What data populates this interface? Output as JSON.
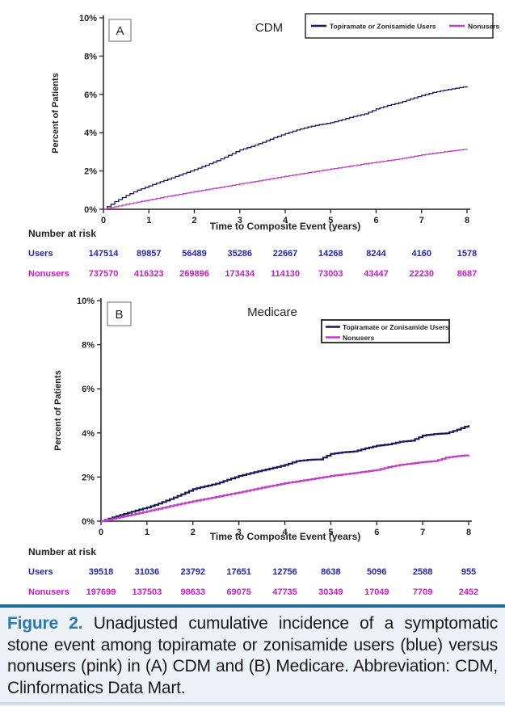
{
  "colors": {
    "axis": "#231f20",
    "users_line": "#17175c",
    "nonusers_line": "#c23ec2",
    "users_text": "#2626a8",
    "nonusers_text": "#d517cb",
    "legend_text": "#161640",
    "caption_rule": "#1d6d96",
    "caption_bg": "#edf1f8",
    "figure_label_blue": "#2579b5",
    "bottom_rule": "#cfdbe7"
  },
  "chart_data": [
    {
      "type": "line",
      "panel_label": "A",
      "title": "CDM",
      "xlabel": "Time to Composite Event (years)",
      "ylabel": "Percent of Patients",
      "xlim": [
        0,
        8
      ],
      "ylim": [
        0,
        10
      ],
      "xticks": [
        "0",
        "1",
        "2",
        "3",
        "4",
        "5",
        "6",
        "7",
        "8"
      ],
      "ytick_labels": [
        "0%",
        "2%",
        "4%",
        "6%",
        "8%",
        "10%"
      ],
      "grid": false,
      "legend_position": "top-right single row",
      "series": [
        {
          "name": "Topiramate or Zonisamide Users",
          "color_key": "users_line",
          "points": [
            [
              0,
              0
            ],
            [
              0.25,
              0.4
            ],
            [
              0.5,
              0.72
            ],
            [
              0.75,
              1.0
            ],
            [
              1,
              1.22
            ],
            [
              1.25,
              1.44
            ],
            [
              1.5,
              1.64
            ],
            [
              1.75,
              1.86
            ],
            [
              2,
              2.07
            ],
            [
              2.25,
              2.3
            ],
            [
              2.5,
              2.54
            ],
            [
              2.75,
              2.82
            ],
            [
              3,
              3.1
            ],
            [
              3.25,
              3.28
            ],
            [
              3.5,
              3.5
            ],
            [
              3.75,
              3.74
            ],
            [
              4,
              3.95
            ],
            [
              4.25,
              4.14
            ],
            [
              4.5,
              4.3
            ],
            [
              4.75,
              4.42
            ],
            [
              5,
              4.52
            ],
            [
              5.25,
              4.68
            ],
            [
              5.5,
              4.85
            ],
            [
              5.75,
              4.98
            ],
            [
              6,
              5.24
            ],
            [
              6.25,
              5.42
            ],
            [
              6.5,
              5.56
            ],
            [
              6.75,
              5.76
            ],
            [
              7,
              5.94
            ],
            [
              7.25,
              6.1
            ],
            [
              7.5,
              6.22
            ],
            [
              7.75,
              6.32
            ],
            [
              8,
              6.42
            ]
          ]
        },
        {
          "name": "Nonusers",
          "color_key": "nonusers_line",
          "points": [
            [
              0,
              0
            ],
            [
              0.5,
              0.26
            ],
            [
              1,
              0.49
            ],
            [
              1.5,
              0.71
            ],
            [
              2,
              0.92
            ],
            [
              2.5,
              1.12
            ],
            [
              3,
              1.32
            ],
            [
              3.5,
              1.52
            ],
            [
              4,
              1.72
            ],
            [
              4.5,
              1.91
            ],
            [
              5,
              2.1
            ],
            [
              5.5,
              2.28
            ],
            [
              6,
              2.46
            ],
            [
              6.5,
              2.62
            ],
            [
              7,
              2.84
            ],
            [
              7.5,
              3.0
            ],
            [
              8,
              3.15
            ]
          ]
        }
      ],
      "risk_table": {
        "heading": "Number at risk",
        "rows": [
          {
            "label": "Users",
            "color_key": "users_text",
            "values": [
              "147514",
              "89857",
              "56489",
              "35286",
              "22667",
              "14268",
              "8244",
              "4160",
              "1578"
            ]
          },
          {
            "label": "Nonusers",
            "color_key": "nonusers_text",
            "values": [
              "737570",
              "416323",
              "269896",
              "173434",
              "114130",
              "73003",
              "43447",
              "22230",
              "8687"
            ]
          }
        ]
      }
    },
    {
      "type": "line",
      "panel_label": "B",
      "title": "Medicare",
      "xlabel": "Time to Composite Event (years)",
      "ylabel": "Percent of Patients",
      "xlim": [
        0,
        8
      ],
      "ylim": [
        0,
        10
      ],
      "xticks": [
        "0",
        "1",
        "2",
        "3",
        "4",
        "5",
        "6",
        "7",
        "8"
      ],
      "ytick_labels": [
        "0%",
        "2%",
        "4%",
        "6%",
        "8%",
        "10%"
      ],
      "grid": false,
      "legend_position": "top-right stacked",
      "series": [
        {
          "name": "Topiramate or Zonisamide Users",
          "color_key": "users_line",
          "points": [
            [
              0,
              0
            ],
            [
              0.25,
              0.17
            ],
            [
              0.5,
              0.33
            ],
            [
              0.75,
              0.48
            ],
            [
              1,
              0.62
            ],
            [
              1.25,
              0.8
            ],
            [
              1.5,
              1.0
            ],
            [
              1.75,
              1.22
            ],
            [
              2,
              1.45
            ],
            [
              2.25,
              1.58
            ],
            [
              2.5,
              1.7
            ],
            [
              2.75,
              1.88
            ],
            [
              3,
              2.05
            ],
            [
              3.25,
              2.18
            ],
            [
              3.5,
              2.3
            ],
            [
              3.75,
              2.42
            ],
            [
              4,
              2.55
            ],
            [
              4.25,
              2.72
            ],
            [
              4.5,
              2.78
            ],
            [
              4.75,
              2.8
            ],
            [
              5,
              3.05
            ],
            [
              5.25,
              3.12
            ],
            [
              5.5,
              3.16
            ],
            [
              5.75,
              3.3
            ],
            [
              6,
              3.42
            ],
            [
              6.25,
              3.48
            ],
            [
              6.5,
              3.6
            ],
            [
              6.75,
              3.65
            ],
            [
              7,
              3.88
            ],
            [
              7.25,
              3.95
            ],
            [
              7.5,
              3.98
            ],
            [
              7.75,
              4.15
            ],
            [
              8,
              4.35
            ]
          ]
        },
        {
          "name": "Nonusers",
          "color_key": "nonusers_line",
          "points": [
            [
              0,
              0
            ],
            [
              0.5,
              0.22
            ],
            [
              1,
              0.45
            ],
            [
              1.5,
              0.68
            ],
            [
              2,
              0.9
            ],
            [
              2.5,
              1.1
            ],
            [
              3,
              1.3
            ],
            [
              3.5,
              1.52
            ],
            [
              4,
              1.72
            ],
            [
              4.5,
              1.88
            ],
            [
              5,
              2.05
            ],
            [
              5.5,
              2.18
            ],
            [
              6,
              2.32
            ],
            [
              6.25,
              2.45
            ],
            [
              6.5,
              2.55
            ],
            [
              7,
              2.68
            ],
            [
              7.25,
              2.72
            ],
            [
              7.5,
              2.88
            ],
            [
              7.75,
              2.95
            ],
            [
              8,
              3.0
            ]
          ]
        }
      ],
      "risk_table": {
        "heading": "Number at risk",
        "rows": [
          {
            "label": "Users",
            "color_key": "users_text",
            "values": [
              "39518",
              "31036",
              "23792",
              "17651",
              "12756",
              "8638",
              "5096",
              "2588",
              "955"
            ]
          },
          {
            "label": "Nonusers",
            "color_key": "nonusers_text",
            "values": [
              "197699",
              "137503",
              "98633",
              "69075",
              "47735",
              "30349",
              "17049",
              "7709",
              "2452"
            ]
          }
        ]
      }
    }
  ],
  "caption": {
    "label": "Figure 2.",
    "text": "Unadjusted cumulative incidence of a symptomatic stone event among topiramate or zonisamide users (blue) versus nonusers (pink) in (A) CDM and (B) Medicare. Abbreviation: CDM, Clinformatics Data Mart."
  }
}
